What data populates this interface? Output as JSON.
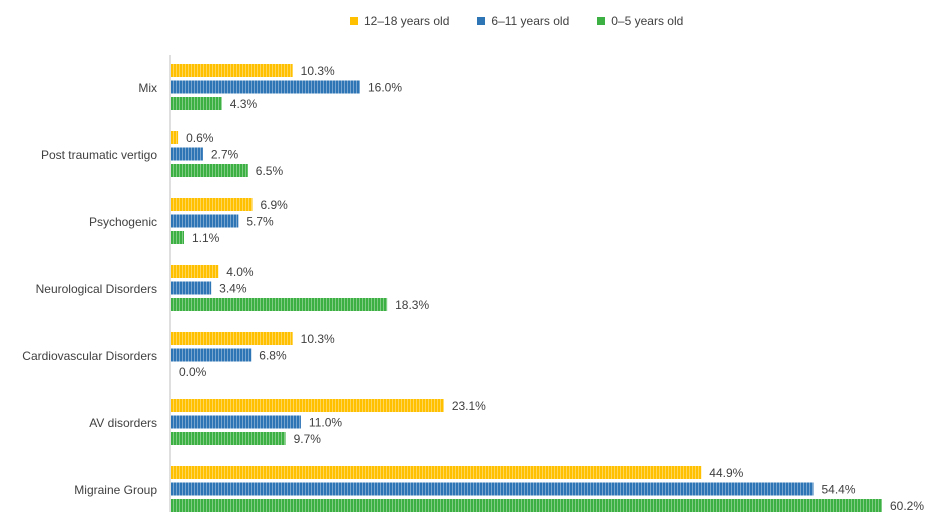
{
  "chart_data": {
    "type": "bar",
    "orientation": "horizontal",
    "categories": [
      "Mix",
      "Post traumatic vertigo",
      "Psychogenic",
      "Neurological Disorders",
      "Cardiovascular Disorders",
      "AV disorders",
      "Migraine Group"
    ],
    "series": [
      {
        "name": "12–18 years old",
        "color": "#FFC000",
        "values": [
          10.3,
          0.6,
          6.9,
          4.0,
          10.3,
          23.1,
          44.9
        ],
        "labels": [
          "10.3%",
          "0.6%",
          "6.9%",
          "4.0%",
          "10.3%",
          "23.1%",
          "44.9%"
        ]
      },
      {
        "name": "6–11 years old",
        "color": "#2E75B6",
        "values": [
          16.0,
          2.7,
          5.7,
          3.4,
          6.8,
          11.0,
          54.4
        ],
        "labels": [
          "16.0%",
          "2.7%",
          "5.7%",
          "3.4%",
          "6.8%",
          "11.0%",
          "54.4%"
        ]
      },
      {
        "name": "0–5 years old",
        "color": "#3CB043",
        "values": [
          4.3,
          6.5,
          1.1,
          18.3,
          0.0,
          9.7,
          60.2
        ],
        "labels": [
          "4.3%",
          "6.5%",
          "1.1%",
          "18.3%",
          "0.0%",
          "9.7%",
          "60.2%"
        ]
      }
    ],
    "xlim": [
      0,
      60.2
    ],
    "legend_position": "top",
    "grid": false
  }
}
